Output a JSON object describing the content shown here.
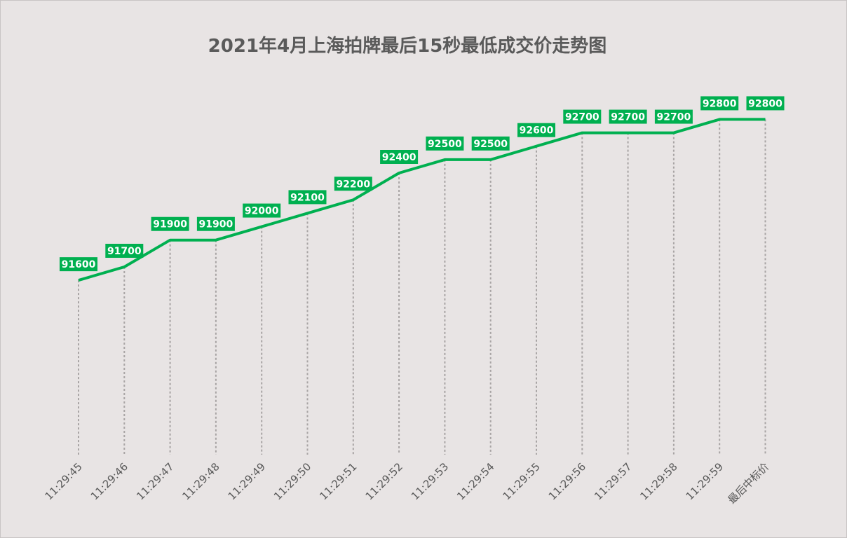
{
  "chart_data": {
    "type": "line",
    "title": "2021年4月上海拍牌最后15秒最低成交价走势图",
    "categories": [
      "11:29:45",
      "11:29:46",
      "11:29:47",
      "11:29:48",
      "11:29:49",
      "11:29:50",
      "11:29:51",
      "11:29:52",
      "11:29:53",
      "11:29:54",
      "11:29:55",
      "11:29:56",
      "11:29:57",
      "11:29:58",
      "11:29:59",
      "最后中标价"
    ],
    "values": [
      91600,
      91700,
      91900,
      91900,
      92000,
      92100,
      92200,
      92400,
      92500,
      92500,
      92600,
      92700,
      92700,
      92700,
      92800,
      92800
    ],
    "data_labels": [
      "91600",
      "91700",
      "91900",
      "91900",
      "92000",
      "92100",
      "92200",
      "92400",
      "92500",
      "92500",
      "92600",
      "92700",
      "92700",
      "92700",
      "92800",
      "92800"
    ],
    "xlabel": "",
    "ylabel": "",
    "ylim": [
      90300,
      93100
    ],
    "grid": false,
    "legend": "none",
    "drop_lines": true,
    "line_color": "#00b050",
    "label_color": "#00b050"
  }
}
